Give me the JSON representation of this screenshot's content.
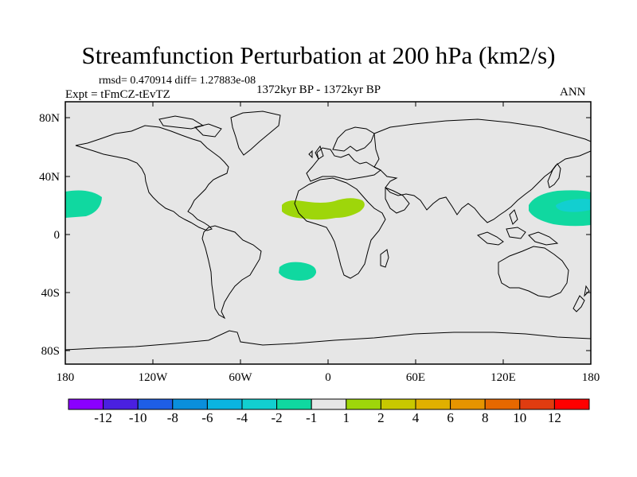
{
  "title": "Streamfunction Perturbation at 200 hPa (km2/s)",
  "stats_text": "rmsd= 0.470914 diff= 1.27883e-08",
  "experiment_text": "Expt = tFmCZ-tEvTZ",
  "period_text": "1372kyr BP - 1372kyr BP",
  "season_text": "ANN",
  "lat_labels": [
    "80N",
    "40N",
    "0",
    "40S",
    "80S"
  ],
  "lon_labels": [
    "180",
    "120W",
    "60W",
    "0",
    "60E",
    "120E",
    "180"
  ],
  "colorbar": {
    "colors": [
      "#8a00ff",
      "#4a20e0",
      "#1e5ee6",
      "#0a8fdc",
      "#0ab4e0",
      "#12cfd0",
      "#10d8a0",
      "#e6e6e6",
      "#9ed60a",
      "#c8c800",
      "#e0b000",
      "#e69400",
      "#e66800",
      "#e03c10",
      "#ff0000"
    ],
    "labels": [
      "-12",
      "-10",
      "-8",
      "-6",
      "-4",
      "-2",
      "-1",
      "1",
      "2",
      "4",
      "6",
      "8",
      "10",
      "12"
    ]
  },
  "chart_data": {
    "type": "map",
    "variable": "Streamfunction Perturbation",
    "level": "200 hPa",
    "units": "km2/s",
    "lon_range": [
      -180,
      180
    ],
    "lat_range": [
      -90,
      90
    ],
    "anomalies": [
      {
        "region": "central Pacific (west of 150W)",
        "lon": -172,
        "lat": 20,
        "range": "-2 to -1"
      },
      {
        "region": "West Africa / Sahel",
        "lon": -5,
        "lat": 18,
        "range": "1 to 2"
      },
      {
        "region": "South Atlantic",
        "lon": -20,
        "lat": -25,
        "range": "-2 to -1"
      },
      {
        "region": "NW Pacific",
        "lon": 160,
        "lat": 20,
        "range": "-4 to -1"
      }
    ]
  }
}
